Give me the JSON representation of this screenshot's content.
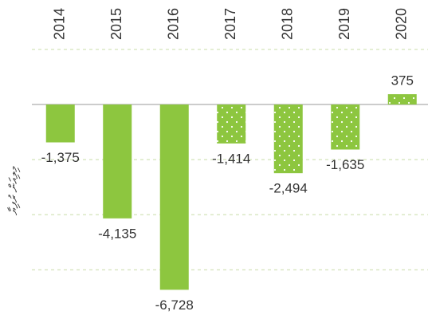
{
  "chart_data": {
    "type": "bar",
    "y_label": "މިލިއަން ރުފިޔާ",
    "categories": [
      "2014",
      "2015",
      "2016",
      "2017",
      "2018",
      "2019",
      "2020"
    ],
    "values": [
      -1375,
      -4135,
      -6728,
      -1414,
      -2494,
      -1635,
      375
    ],
    "value_labels": [
      "-1,375",
      "-4,135",
      "-6,728",
      "-1,414",
      "-2,494",
      "-1,635",
      "375"
    ],
    "patterns": [
      "solid",
      "solid",
      "solid",
      "dotted",
      "dotted",
      "dotted",
      "dotted"
    ],
    "color": "#8dc63f",
    "ylim": [
      -7500,
      2000
    ],
    "yticks": [
      2000,
      0,
      -2000,
      -4000,
      -6000
    ],
    "grid": true
  }
}
